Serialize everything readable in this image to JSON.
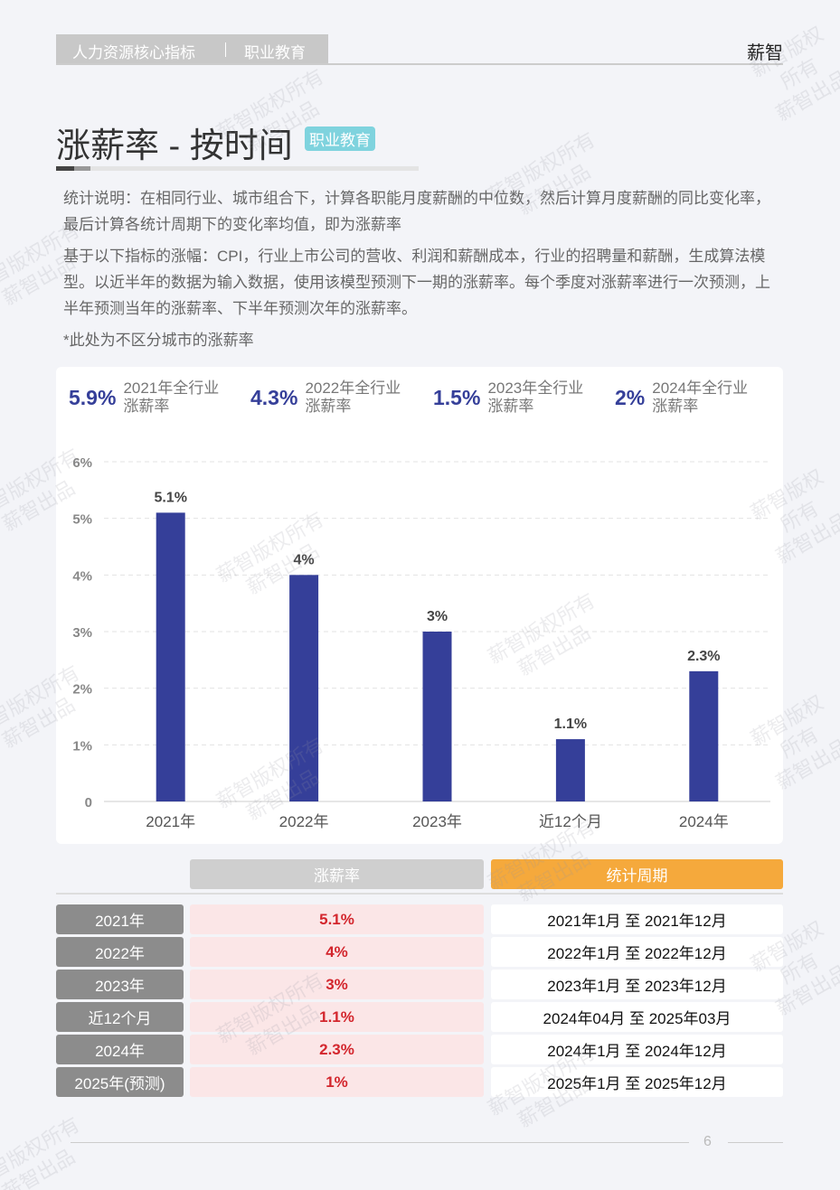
{
  "header": {
    "section": "人力资源核心指标",
    "industry": "职业教育",
    "brand": "薪智"
  },
  "title": "涨薪率 - 按时间",
  "tag": "职业教育",
  "paragraphs": [
    "统计说明：在相同行业、城市组合下，计算各职能月度薪酬的中位数，然后计算月度薪酬的同比变化率，最后计算各统计周期下的变化率均值，即为涨薪率",
    "基于以下指标的涨幅：CPI，行业上市公司的营收、利润和薪酬成本，行业的招聘量和薪酬，生成算法模型。以近半年的数据为输入数据，使用该模型预测下一期的涨薪率。每个季度对涨薪率进行一次预测，上半年预测当年的涨薪率、下半年预测次年的涨薪率。",
    "*此处为不区分城市的涨薪率"
  ],
  "stats": [
    {
      "value": "5.9%",
      "label": [
        "2021年全行业",
        "涨薪率"
      ]
    },
    {
      "value": "4.3%",
      "label": [
        "2022年全行业",
        "涨薪率"
      ]
    },
    {
      "value": "1.5%",
      "label": [
        "2023年全行业",
        "涨薪率"
      ]
    },
    {
      "value": "2%",
      "label": [
        "2024年全行业",
        "涨薪率"
      ]
    }
  ],
  "chart_data": {
    "type": "bar",
    "categories": [
      "2021年",
      "2022年",
      "2023年",
      "近12个月",
      "2024年"
    ],
    "values": [
      5.1,
      4,
      3,
      1.1,
      2.3
    ],
    "value_labels": [
      "5.1%",
      "4%",
      "3%",
      "1.1%",
      "2.3%"
    ],
    "color": "#353f99",
    "ylim": [
      0,
      6
    ],
    "yticks": [
      0,
      {
        "value": 1,
        "label": "1%"
      },
      {
        "value": 2,
        "label": "2%"
      },
      {
        "value": 3,
        "label": "3%"
      },
      {
        "value": 4,
        "label": "4%"
      },
      {
        "value": 5,
        "label": "5%"
      },
      {
        "value": 6,
        "label": "6%"
      }
    ],
    "grid": true
  },
  "table": {
    "headers": [
      "涨薪率",
      "统计周期"
    ],
    "rows": [
      [
        "2021年",
        "5.1%",
        "2021年1月 至 2021年12月"
      ],
      [
        "2022年",
        "4%",
        "2022年1月 至 2022年12月"
      ],
      [
        "2023年",
        "3%",
        "2023年1月 至 2023年12月"
      ],
      [
        "近12个月",
        "1.1%",
        "2024年04月 至 2025年03月"
      ],
      [
        "2024年",
        "2.3%",
        "2024年1月 至 2024年12月"
      ],
      [
        "2025年(预测)",
        "1%",
        "2025年1月 至 2025年12月"
      ]
    ]
  },
  "watermark": [
    "薪智版权所有",
    "薪智出品"
  ],
  "page_number": "6"
}
